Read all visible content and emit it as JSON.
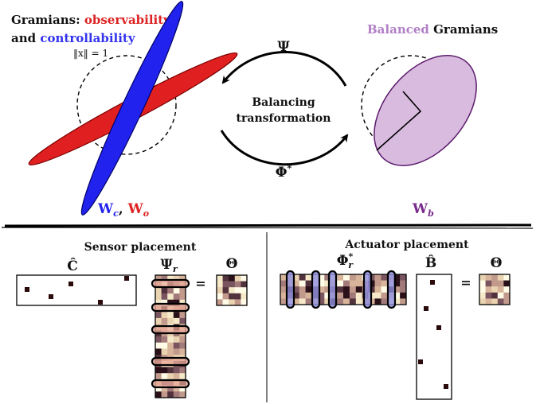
{
  "top_left": {
    "line1_prefix": "Gramians: ",
    "line1_obs": "observability",
    "line2_prefix": "and ",
    "line2_ctrl": "controllability",
    "norm_label": "‖x‖ = 1",
    "wc": "W",
    "wc_sub": "c",
    "comma": ", ",
    "wo": "W",
    "wo_sub": "o"
  },
  "center": {
    "psi": "Ψ",
    "line1": "Balancing",
    "line2": "transformation",
    "phi": "Φ",
    "phi_sup": "*"
  },
  "top_right": {
    "balanced": "Balanced",
    "gramians": " Gramians",
    "wb": "W",
    "wb_sub": "b"
  },
  "sensor": {
    "title": "Sensor placement",
    "c_hat": "Ĉ",
    "psi_r": "Ψ",
    "psi_r_sub": "r",
    "equals": "=",
    "theta": "Θ"
  },
  "actuator": {
    "title": "Actuator placement",
    "phi_r": "Φ",
    "phi_r_sub": "r",
    "phi_r_sup": "*",
    "b_hat": "B̂",
    "equals": "=",
    "theta": "Θ"
  },
  "colors": {
    "observability": "#dd2222",
    "controllability": "#3333ee",
    "balanced": "#b07fc6",
    "balanced_fill": "#d9bbe0",
    "balanced_stroke": "#5b1a6b",
    "sensor_highlight": "#e8a898",
    "actuator_highlight": "#8f8fe0"
  }
}
